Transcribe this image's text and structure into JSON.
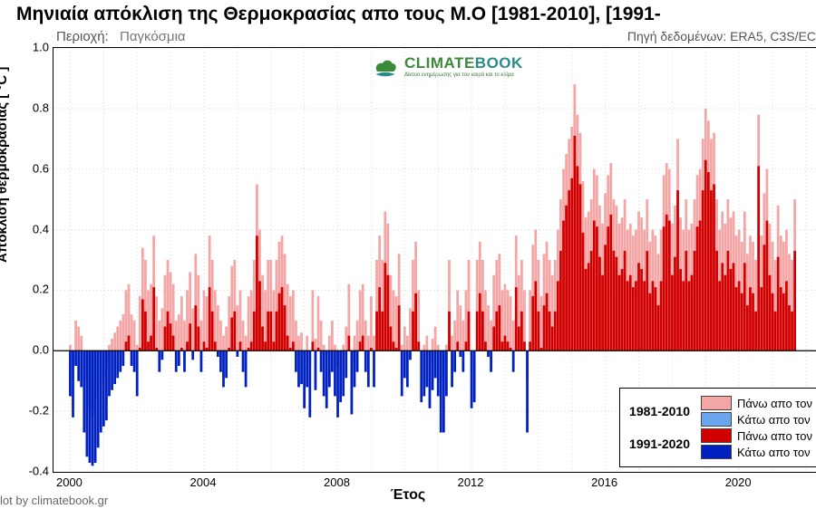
{
  "title": "Μηνιαία απόκλιση της Θερμοκρασίας απο τους Μ.Ο [1981-2010], [1991-",
  "region_label": "Περιοχή:",
  "region_value": "Παγκόσμια",
  "source": "Πηγή δεδομένων: ERA5, C3S/EC",
  "ylabel": "Απόκλιση θερμοκρασίας [ °C ]",
  "xlabel": "Έτος",
  "credit": "lot by climatebook.gr",
  "logo_text": "CLIMATEBOOK",
  "logo_sub": "Δίκτυο ενημέρωσης για τον καιρό και το κλίμα",
  "logo_colors": {
    "green": "#3a8a3a",
    "teal": "#2a8a8a"
  },
  "chart": {
    "type": "bar",
    "background_color": "#ffffff",
    "grid_color": "#d8d8d8",
    "axis_color": "#000000",
    "ylim": [
      -0.4,
      1.0
    ],
    "ytick_step": 0.2,
    "xlim": [
      1999.5,
      2022.3
    ],
    "xticks": [
      2000,
      2004,
      2008,
      2012,
      2016,
      2020
    ],
    "series_colors": {
      "above_1981_2010": "#f4a6a6",
      "below_1981_2010": "#6aa6f0",
      "above_1991_2020": "#d00000",
      "below_1991_2020": "#0020c0"
    },
    "data_1981_2010": [
      0.02,
      -0.05,
      0.1,
      0.08,
      0.05,
      -0.1,
      -0.18,
      -0.2,
      -0.22,
      -0.2,
      -0.15,
      -0.1,
      -0.08,
      -0.06,
      0.02,
      0.04,
      0.06,
      0.08,
      0.1,
      0.12,
      0.2,
      0.22,
      0.12,
      0.1,
      0.02,
      0.18,
      0.34,
      0.3,
      0.2,
      0.22,
      0.38,
      0.18,
      0.1,
      0.14,
      0.25,
      0.3,
      0.26,
      0.22,
      0.1,
      0.12,
      0.18,
      0.1,
      0.2,
      0.26,
      0.14,
      0.32,
      0.25,
      0.1,
      0.2,
      0.18,
      0.38,
      0.3,
      0.2,
      0.15,
      0.1,
      0.05,
      0.08,
      0.18,
      0.28,
      0.3,
      0.15,
      0.2,
      0.1,
      0.05,
      0.18,
      0.2,
      0.3,
      0.55,
      0.4,
      0.25,
      0.2,
      0.3,
      0.3,
      0.2,
      0.3,
      0.36,
      0.38,
      0.32,
      0.22,
      0.18,
      0.2,
      0.1,
      0.05,
      0.06,
      -0.02,
      0.05,
      -0.05,
      0.2,
      0.04,
      0.18,
      0.1,
      0.02,
      -0.02,
      0.05,
      0.1,
      0.02,
      -0.05,
      0.0,
      0.02,
      0.08,
      0.22,
      -0.04,
      0.05,
      0.1,
      0.2,
      0.22,
      0.1,
      0.05,
      0.18,
      0.05,
      0.3,
      0.38,
      0.3,
      0.46,
      0.42,
      0.25,
      0.2,
      0.18,
      0.32,
      0.02,
      0.08,
      0.05,
      0.14,
      0.3,
      0.36,
      0.2,
      0.0,
      0.02,
      0.05,
      -0.02,
      0.04,
      0.08,
      0.02,
      -0.1,
      -0.1,
      0.02,
      0.3,
      0.05,
      0.1,
      0.2,
      0.15,
      0.1,
      0.2,
      0.3,
      -0.02,
      0.0,
      0.3,
      0.36,
      0.3,
      0.2,
      0.15,
      0.1,
      0.25,
      0.3,
      0.32,
      0.2,
      0.22,
      0.2,
      0.18,
      0.1,
      0.38,
      0.25,
      0.3,
      0.2,
      -0.1,
      0.2,
      0.35,
      0.4,
      0.3,
      0.18,
      0.32,
      0.36,
      0.3,
      0.25,
      0.3,
      0.4,
      0.5,
      0.6,
      0.65,
      0.7,
      0.74,
      0.88,
      0.78,
      0.72,
      0.56,
      0.44,
      0.46,
      0.5,
      0.6,
      0.58,
      0.48,
      0.42,
      0.52,
      0.58,
      0.62,
      0.5,
      0.48,
      0.42,
      0.44,
      0.5,
      0.4,
      0.42,
      0.38,
      0.4,
      0.46,
      0.44,
      0.4,
      0.5,
      0.36,
      0.4,
      0.38,
      0.32,
      0.4,
      0.58,
      0.62,
      0.6,
      0.42,
      0.48,
      0.7,
      0.44,
      0.4,
      0.5,
      0.4,
      0.42,
      0.5,
      0.58,
      0.6,
      0.7,
      0.8,
      0.76,
      0.7,
      0.72,
      0.5,
      0.4,
      0.46,
      0.42,
      0.5,
      0.44,
      0.46,
      0.38,
      0.4,
      0.36,
      0.46,
      0.32,
      0.38,
      0.36,
      0.3,
      0.78,
      0.38,
      0.52,
      0.6,
      0.42,
      0.36,
      0.3,
      0.48,
      0.38,
      0.36,
      0.4,
      0.32,
      0.3,
      0.5
    ],
    "data_1991_2020": [
      -0.15,
      -0.22,
      -0.05,
      -0.1,
      -0.12,
      -0.27,
      -0.35,
      -0.37,
      -0.38,
      -0.37,
      -0.32,
      -0.27,
      -0.25,
      -0.23,
      -0.15,
      -0.13,
      -0.11,
      -0.09,
      -0.07,
      -0.05,
      0.03,
      0.05,
      -0.05,
      -0.07,
      -0.15,
      0.01,
      0.17,
      0.13,
      0.03,
      0.05,
      0.21,
      0.01,
      -0.07,
      -0.03,
      0.08,
      0.13,
      0.09,
      0.05,
      -0.07,
      -0.05,
      0.01,
      -0.07,
      0.03,
      0.09,
      -0.03,
      0.15,
      0.08,
      -0.07,
      0.03,
      0.01,
      0.21,
      0.13,
      0.03,
      -0.02,
      -0.07,
      -0.12,
      -0.09,
      0.01,
      0.11,
      0.13,
      -0.02,
      0.03,
      -0.07,
      -0.12,
      0.01,
      0.03,
      0.13,
      0.38,
      0.23,
      0.08,
      0.03,
      0.13,
      0.13,
      0.03,
      0.13,
      0.19,
      0.21,
      0.15,
      0.05,
      0.01,
      0.03,
      -0.07,
      -0.12,
      -0.11,
      -0.19,
      -0.12,
      -0.22,
      0.03,
      -0.13,
      0.01,
      -0.07,
      -0.15,
      -0.19,
      -0.12,
      -0.07,
      -0.15,
      -0.22,
      -0.17,
      -0.15,
      -0.09,
      0.05,
      -0.21,
      -0.12,
      -0.07,
      0.03,
      0.05,
      -0.07,
      -0.12,
      0.01,
      -0.12,
      0.13,
      0.21,
      0.13,
      0.29,
      0.25,
      0.08,
      0.03,
      0.01,
      0.15,
      -0.15,
      -0.09,
      -0.12,
      -0.03,
      0.13,
      0.19,
      0.03,
      -0.17,
      -0.15,
      -0.12,
      -0.19,
      -0.13,
      -0.09,
      -0.15,
      -0.27,
      -0.27,
      -0.15,
      0.13,
      -0.12,
      -0.07,
      0.03,
      -0.02,
      -0.07,
      0.03,
      0.13,
      -0.19,
      -0.17,
      0.13,
      0.19,
      0.13,
      0.03,
      -0.02,
      -0.07,
      0.08,
      0.13,
      0.15,
      0.03,
      0.05,
      0.03,
      0.01,
      -0.07,
      0.21,
      0.08,
      0.13,
      0.03,
      -0.27,
      0.03,
      0.18,
      0.23,
      0.13,
      0.01,
      0.15,
      0.19,
      0.13,
      0.08,
      0.13,
      0.23,
      0.33,
      0.43,
      0.48,
      0.53,
      0.57,
      0.71,
      0.61,
      0.55,
      0.39,
      0.27,
      0.29,
      0.33,
      0.43,
      0.41,
      0.31,
      0.25,
      0.35,
      0.41,
      0.45,
      0.33,
      0.31,
      0.25,
      0.27,
      0.33,
      0.23,
      0.25,
      0.21,
      0.23,
      0.29,
      0.27,
      0.23,
      0.33,
      0.19,
      0.23,
      0.21,
      0.15,
      0.23,
      0.41,
      0.45,
      0.43,
      0.25,
      0.31,
      0.53,
      0.27,
      0.23,
      0.33,
      0.23,
      0.25,
      0.33,
      0.41,
      0.43,
      0.53,
      0.63,
      0.59,
      0.53,
      0.55,
      0.33,
      0.23,
      0.29,
      0.25,
      0.33,
      0.27,
      0.29,
      0.21,
      0.23,
      0.19,
      0.29,
      0.15,
      0.21,
      0.19,
      0.13,
      0.61,
      0.21,
      0.35,
      0.43,
      0.25,
      0.19,
      0.13,
      0.31,
      0.21,
      0.19,
      0.23,
      0.15,
      0.13,
      0.33
    ]
  },
  "legend": {
    "period1": "1981-2010",
    "period2": "1991-2020",
    "above": "Πάνω απο τον",
    "below": "Κάτω απο τον"
  }
}
